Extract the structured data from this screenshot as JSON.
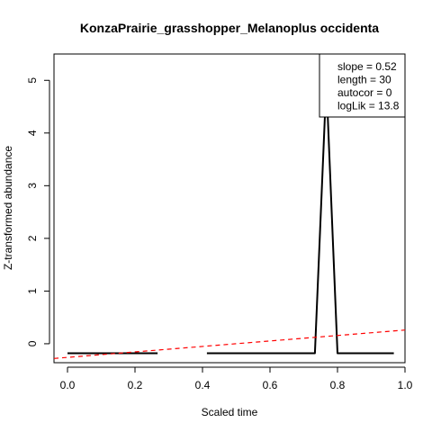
{
  "chart_data": {
    "type": "line",
    "title": "KonzaPrairie_grasshopper_Melanoplus occidenta",
    "xlabel": "Scaled time",
    "ylabel": "Z-transformed abundance",
    "xlim": [
      -0.04,
      1.0
    ],
    "ylim": [
      -0.36,
      5.5
    ],
    "x_ticks": [
      0.0,
      0.2,
      0.4,
      0.6,
      0.8,
      1.0
    ],
    "x_tick_labels": [
      "0.0",
      "0.2",
      "0.4",
      "0.6",
      "0.8",
      "1.0"
    ],
    "y_ticks": [
      0,
      1,
      2,
      3,
      4,
      5
    ],
    "y_tick_labels": [
      "0",
      "1",
      "2",
      "3",
      "4",
      "5"
    ],
    "grid": false,
    "legend_position": "top-right",
    "legend_lines": [
      "slope = 0.52",
      "length = 30",
      "autocor = 0",
      "logLik = 13.8"
    ],
    "series": [
      {
        "color": "#000000",
        "style": "solid",
        "segments": [
          {
            "x": [
              0.0,
              0.267
            ],
            "y": [
              -0.18,
              -0.18
            ]
          },
          {
            "x": [
              0.413,
              0.733,
              0.767,
              0.8,
              0.967
            ],
            "y": [
              -0.18,
              -0.18,
              4.97,
              -0.18,
              -0.18
            ]
          }
        ]
      },
      {
        "color": "#ff0000",
        "style": "dashed",
        "segments": [
          {
            "x": [
              -0.04,
              1.0
            ],
            "y": [
              -0.28,
              0.26
            ]
          }
        ]
      }
    ]
  }
}
